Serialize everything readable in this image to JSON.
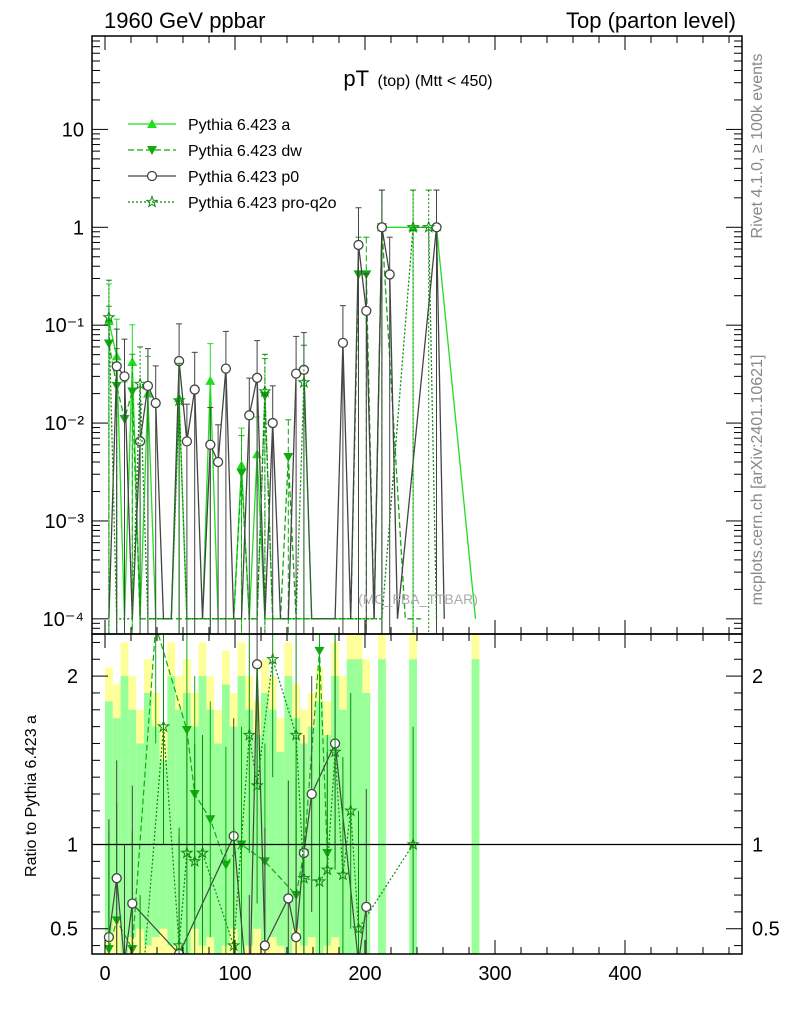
{
  "header": {
    "left": "1960 GeV ppbar",
    "right": "Top (parton level)"
  },
  "side_labels": {
    "rivet": "Rivet 4.1.0, ≥ 100k events",
    "mcplots": "mcplots.cern.ch [arXiv:2401.10621]"
  },
  "watermark": "(MC_FBA_TTBAR)",
  "chart_data": {
    "type": "line",
    "title_main": "pT",
    "title_sub": "(top) (Mtt < 450)",
    "ylabel_ratio": "Ratio to Pythia 6.423 a",
    "xlim": [
      -10,
      490
    ],
    "ylim_log": [
      7e-05,
      90
    ],
    "ylim_ratio": [
      0.35,
      2.25
    ],
    "main_y_ticks": [
      "10⁻⁴",
      "10⁻³",
      "10⁻²",
      "10⁻¹",
      "1",
      "10"
    ],
    "ratio_y_ticks": [
      "0.5",
      "1",
      "2"
    ],
    "x_ticks": [
      "0",
      "100",
      "200",
      "300",
      "400"
    ],
    "legend_position": "top-left",
    "colors": {
      "a": "#22dd22",
      "dw": "#11aa11",
      "p0": "#444444",
      "proq2o": "#118811",
      "band_yellow": "#ffff99",
      "band_green": "#99ff99"
    },
    "series": [
      {
        "name": "Pythia 6.423 a",
        "style": "solid",
        "marker": "triangle-up",
        "points": [
          [
            3,
            0.11
          ],
          [
            9,
            0.048
          ],
          [
            15,
            0.0001
          ],
          [
            21,
            0.042
          ],
          [
            27,
            0.0001
          ],
          [
            33,
            0.02
          ],
          [
            39,
            0.0001
          ],
          [
            45,
            0.0001
          ],
          [
            51,
            0.0001
          ],
          [
            57,
            0.018
          ],
          [
            63,
            0.0001
          ],
          [
            69,
            0.0001
          ],
          [
            75,
            0.0001
          ],
          [
            81,
            0.027
          ],
          [
            87,
            0.0001
          ],
          [
            93,
            0.0001
          ],
          [
            99,
            0.0001
          ],
          [
            105,
            0.0037
          ],
          [
            111,
            0.0001
          ],
          [
            117,
            0.0048
          ],
          [
            123,
            0.0001
          ],
          [
            129,
            0.0001
          ],
          [
            135,
            0.0001
          ],
          [
            141,
            0.0001
          ],
          [
            147,
            0.0001
          ],
          [
            153,
            0.0001
          ],
          [
            159,
            0.0001
          ],
          [
            165,
            0.0001
          ],
          [
            171,
            0.0001
          ],
          [
            177,
            0.0001
          ],
          [
            183,
            0.0001
          ],
          [
            189,
            0.0001
          ],
          [
            195,
            0.0001
          ],
          [
            201,
            0.0001
          ],
          [
            207,
            0.0001
          ],
          [
            213,
            1.0
          ],
          [
            237,
            1.0
          ],
          [
            255,
            1.0
          ],
          [
            285,
            0.0001
          ]
        ]
      },
      {
        "name": "Pythia 6.423 dw",
        "style": "dashed",
        "marker": "triangle-down",
        "points": [
          [
            3,
            0.065
          ],
          [
            9,
            0.024
          ],
          [
            15,
            0.011
          ],
          [
            21,
            0.021
          ],
          [
            27,
            0.0001
          ],
          [
            33,
            0.0001
          ],
          [
            39,
            0.0001
          ],
          [
            45,
            0.0001
          ],
          [
            51,
            0.0001
          ],
          [
            57,
            0.0001
          ],
          [
            63,
            0.0001
          ],
          [
            69,
            0.0001
          ],
          [
            75,
            0.0001
          ],
          [
            81,
            0.0001
          ],
          [
            87,
            0.0001
          ],
          [
            93,
            0.0001
          ],
          [
            99,
            0.0001
          ],
          [
            105,
            0.0031
          ],
          [
            111,
            0.0001
          ],
          [
            117,
            0.0001
          ],
          [
            123,
            0.019
          ],
          [
            129,
            0.0001
          ],
          [
            135,
            0.0001
          ],
          [
            141,
            0.0045
          ],
          [
            147,
            0.0001
          ],
          [
            153,
            0.0001
          ],
          [
            159,
            0.0001
          ],
          [
            165,
            0.0001
          ],
          [
            171,
            0.0001
          ],
          [
            177,
            0.0001
          ],
          [
            183,
            0.0001
          ],
          [
            189,
            0.0001
          ],
          [
            195,
            0.33
          ],
          [
            201,
            0.33
          ],
          [
            207,
            0.0001
          ],
          [
            213,
            1.0
          ],
          [
            231,
            0.0001
          ],
          [
            243,
            0.0001
          ]
        ]
      },
      {
        "name": "Pythia 6.423 p0",
        "style": "solid",
        "marker": "circle-open",
        "points": [
          [
            3,
            0.0001
          ],
          [
            9,
            0.038
          ],
          [
            15,
            0.03
          ],
          [
            21,
            0.0001
          ],
          [
            27,
            0.0065
          ],
          [
            33,
            0.024
          ],
          [
            39,
            0.016
          ],
          [
            45,
            0.0001
          ],
          [
            51,
            0.0001
          ],
          [
            57,
            0.043
          ],
          [
            63,
            0.0065
          ],
          [
            69,
            0.022
          ],
          [
            75,
            0.0001
          ],
          [
            81,
            0.006
          ],
          [
            87,
            0.004
          ],
          [
            93,
            0.036
          ],
          [
            99,
            0.0001
          ],
          [
            105,
            0.0001
          ],
          [
            111,
            0.012
          ],
          [
            117,
            0.029
          ],
          [
            123,
            0.0001
          ],
          [
            129,
            0.01
          ],
          [
            135,
            0.0001
          ],
          [
            141,
            0.0001
          ],
          [
            147,
            0.032
          ],
          [
            153,
            0.035
          ],
          [
            159,
            0.0001
          ],
          [
            165,
            0.0001
          ],
          [
            171,
            0.0001
          ],
          [
            177,
            0.0001
          ],
          [
            183,
            0.066
          ],
          [
            189,
            0.0001
          ],
          [
            195,
            0.66
          ],
          [
            201,
            0.14
          ],
          [
            207,
            0.0001
          ],
          [
            213,
            1.0
          ],
          [
            219,
            0.33
          ],
          [
            225,
            0.0001
          ],
          [
            255,
            1.0
          ],
          [
            261,
            0.0001
          ]
        ]
      },
      {
        "name": "Pythia 6.423 pro-q2o",
        "style": "dotted",
        "marker": "star-open",
        "points": [
          [
            3,
            0.12
          ],
          [
            9,
            0.0001
          ],
          [
            15,
            0.0001
          ],
          [
            21,
            0.0001
          ],
          [
            27,
            0.025
          ],
          [
            33,
            0.0001
          ],
          [
            39,
            0.0001
          ],
          [
            45,
            0.0001
          ],
          [
            51,
            0.0001
          ],
          [
            57,
            0.017
          ],
          [
            63,
            0.0001
          ],
          [
            69,
            0.0001
          ],
          [
            75,
            0.0001
          ],
          [
            81,
            0.0001
          ],
          [
            87,
            0.0001
          ],
          [
            93,
            0.0001
          ],
          [
            99,
            0.0001
          ],
          [
            105,
            0.0001
          ],
          [
            111,
            0.0001
          ],
          [
            117,
            0.0001
          ],
          [
            123,
            0.021
          ],
          [
            129,
            0.0001
          ],
          [
            135,
            0.0001
          ],
          [
            141,
            0.0001
          ],
          [
            147,
            0.0001
          ],
          [
            153,
            0.026
          ],
          [
            159,
            0.0001
          ],
          [
            165,
            0.0001
          ],
          [
            171,
            0.0001
          ],
          [
            177,
            0.0001
          ],
          [
            183,
            0.0001
          ],
          [
            189,
            0.0001
          ],
          [
            195,
            0.0001
          ],
          [
            201,
            0.0001
          ],
          [
            207,
            0.0001
          ],
          [
            213,
            0.0001
          ],
          [
            237,
            1.0
          ],
          [
            249,
            1.0
          ],
          [
            255,
            0.0001
          ]
        ]
      }
    ],
    "ratio_series": [
      {
        "name": "Pythia 6.423 dw",
        "points": [
          [
            3,
            0.38
          ],
          [
            9,
            0.55
          ],
          [
            21,
            0.38
          ],
          [
            39,
            2.3
          ],
          [
            63,
            1.68
          ],
          [
            69,
            1.3
          ],
          [
            81,
            1.15
          ],
          [
            93,
            0.88
          ],
          [
            105,
            1.0
          ],
          [
            123,
            0.9
          ],
          [
            147,
            0.7
          ],
          [
            153,
            0.95
          ],
          [
            165,
            2.15
          ],
          [
            171,
            0.95
          ]
        ]
      },
      {
        "name": "Pythia 6.423 p0",
        "points": [
          [
            3,
            0.45
          ],
          [
            9,
            0.8
          ],
          [
            15,
            0.3
          ],
          [
            21,
            0.65
          ],
          [
            57,
            0.35
          ],
          [
            99,
            1.05
          ],
          [
            111,
            0.0
          ],
          [
            117,
            2.07
          ],
          [
            123,
            0.4
          ],
          [
            141,
            0.68
          ],
          [
            147,
            0.45
          ],
          [
            153,
            0.95
          ],
          [
            159,
            1.3
          ],
          [
            177,
            1.6
          ],
          [
            195,
            0.3
          ],
          [
            201,
            0.63
          ]
        ]
      },
      {
        "name": "Pythia 6.423 pro-q2o",
        "points": [
          [
            3,
            0.3
          ],
          [
            27,
            0.0
          ],
          [
            45,
            1.7
          ],
          [
            57,
            0.4
          ],
          [
            63,
            0.95
          ],
          [
            69,
            0.9
          ],
          [
            75,
            0.95
          ],
          [
            99,
            0.4
          ],
          [
            111,
            1.65
          ],
          [
            117,
            1.35
          ],
          [
            129,
            2.1
          ],
          [
            147,
            1.65
          ],
          [
            153,
            0.8
          ],
          [
            165,
            0.78
          ],
          [
            171,
            0.85
          ],
          [
            177,
            1.55
          ],
          [
            183,
            0.82
          ],
          [
            189,
            1.2
          ],
          [
            195,
            0.5
          ],
          [
            237,
            1.0
          ]
        ]
      }
    ],
    "ratio_bands": [
      [
        0,
        2.05,
        0.45
      ],
      [
        6,
        1.95,
        0.55
      ],
      [
        12,
        2.2,
        0.35
      ],
      [
        18,
        2.0,
        0.45
      ],
      [
        24,
        1.8,
        0.5
      ],
      [
        30,
        2.1,
        0.4
      ],
      [
        36,
        1.9,
        0.45
      ],
      [
        42,
        1.7,
        0.5
      ],
      [
        48,
        2.2,
        0.4
      ],
      [
        54,
        2.0,
        0.4
      ],
      [
        60,
        2.1,
        0.35
      ],
      [
        66,
        1.9,
        0.5
      ],
      [
        72,
        2.2,
        0.4
      ],
      [
        78,
        2.0,
        0.45
      ],
      [
        84,
        1.8,
        0.35
      ],
      [
        90,
        2.15,
        0.4
      ],
      [
        96,
        1.9,
        0.5
      ],
      [
        102,
        2.2,
        0.35
      ],
      [
        108,
        2.0,
        0.4
      ],
      [
        114,
        1.85,
        0.5
      ],
      [
        120,
        2.1,
        0.4
      ],
      [
        126,
        2.0,
        0.45
      ],
      [
        132,
        1.75,
        0.4
      ],
      [
        138,
        2.2,
        0.35
      ],
      [
        144,
        1.95,
        0.5
      ],
      [
        150,
        1.8,
        0.4
      ],
      [
        156,
        1.9,
        0.45
      ],
      [
        162,
        2.05,
        0.35
      ],
      [
        168,
        1.85,
        0.4
      ],
      [
        174,
        2.2,
        0.45
      ],
      [
        180,
        2.0,
        0.35
      ],
      [
        186,
        2.3,
        0.35
      ],
      [
        192,
        2.3,
        0.35
      ],
      [
        198,
        2.1,
        0.35
      ],
      [
        210,
        2.3,
        0.35
      ],
      [
        234,
        2.3,
        0.35
      ],
      [
        282,
        2.3,
        0.35
      ]
    ]
  }
}
